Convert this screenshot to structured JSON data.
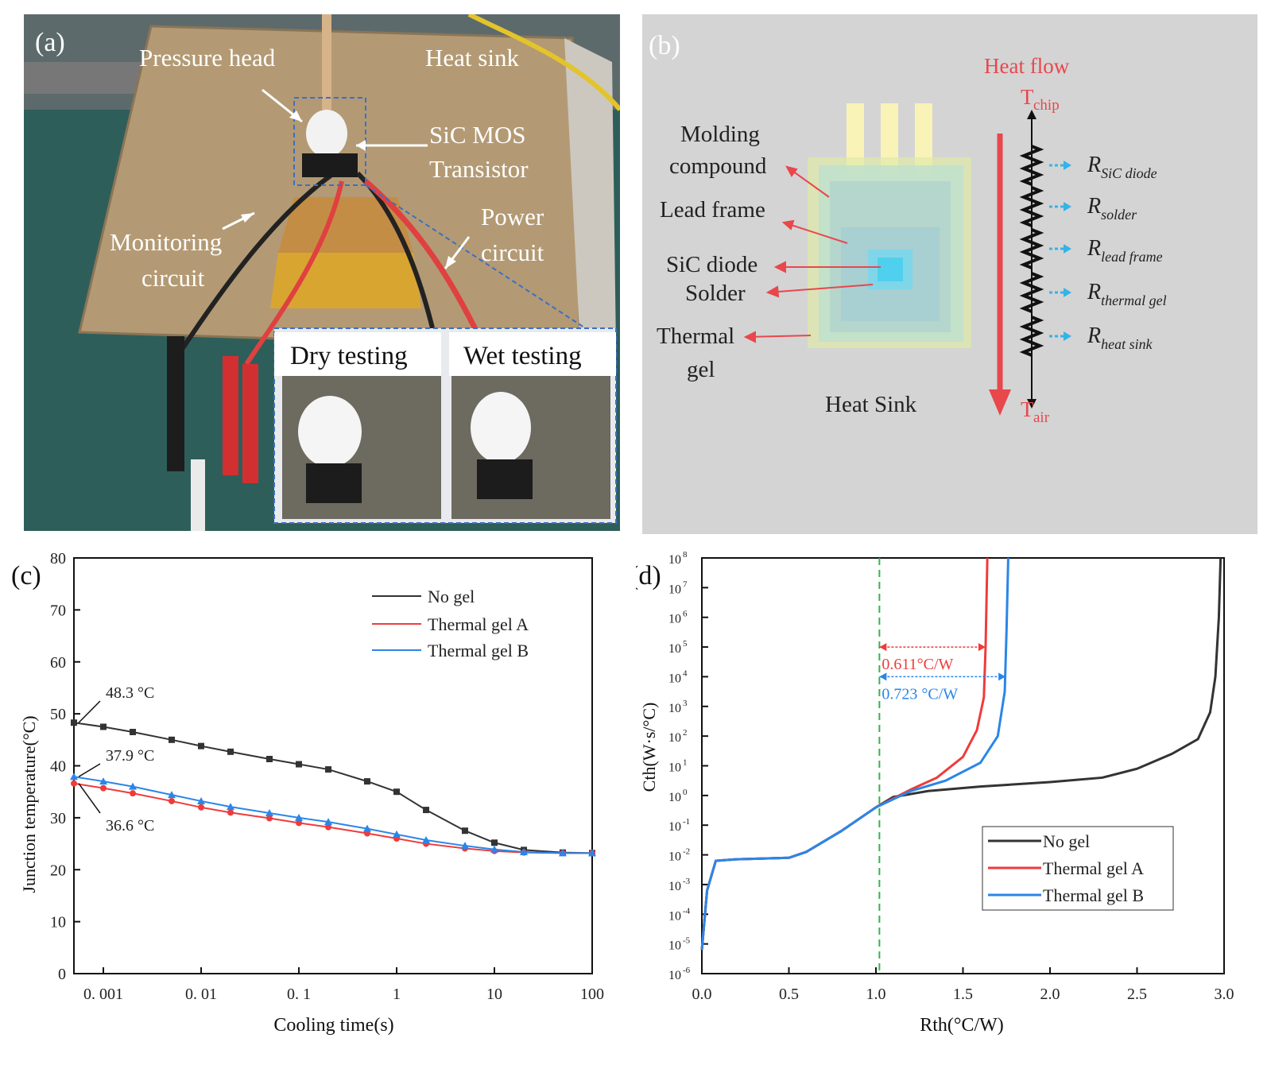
{
  "panel_a": {
    "label": "(a)",
    "annotations": {
      "pressure_head": "Pressure head",
      "heat_sink": "Heat sink",
      "sic_mos_line1": "SiC MOS",
      "sic_mos_line2": "Transistor",
      "monitoring_line1": "Monitoring",
      "monitoring_line2": "circuit",
      "power_line1": "Power",
      "power_line2": "circuit",
      "dry_testing": "Dry testing",
      "wet_testing": "Wet testing"
    },
    "colors": {
      "background": "#2e5e5a",
      "sink": "#b39a74",
      "gel": "#d9a531",
      "frame": "#e8eaee"
    }
  },
  "panel_b": {
    "label": "(b)",
    "heat_flow": "Heat flow",
    "t_chip_main": "T",
    "t_chip_sub": "chip",
    "t_air_main": "T",
    "t_air_sub": "air",
    "labels": {
      "molding_line1": "Molding",
      "molding_line2": "compound",
      "lead_frame": "Lead frame",
      "sic_diode": "SiC diode",
      "solder": "Solder",
      "thermal_line1": "Thermal",
      "thermal_line2": "gel",
      "heat_sink": "Heat Sink"
    },
    "resistors": [
      {
        "main": "R",
        "sub": "SiC diode"
      },
      {
        "main": "R",
        "sub": "solder"
      },
      {
        "main": "R",
        "sub": "lead frame"
      },
      {
        "main": "R",
        "sub": "thermal gel"
      },
      {
        "main": "R",
        "sub": "heat sink"
      }
    ],
    "colors": {
      "background": "#d4d4d4",
      "accent": "#e8474c",
      "arrow_blue": "#33b4e8"
    }
  },
  "chart_data": [
    {
      "panel": "(c)",
      "type": "line",
      "xlabel": "Cooling time(s)",
      "ylabel": "Junction temperature(°C)",
      "x_scale": "log",
      "xlim": [
        0.0005,
        100
      ],
      "ylim": [
        0,
        80
      ],
      "x_ticks": [
        0.001,
        0.01,
        0.1,
        1,
        10,
        100
      ],
      "x_tick_labels": [
        "0. 001",
        "0. 01",
        "0. 1",
        "1",
        "10",
        "100"
      ],
      "y_ticks": [
        0,
        10,
        20,
        30,
        40,
        50,
        60,
        70,
        80
      ],
      "legend_position": "top-right",
      "series": [
        {
          "name": "No gel",
          "color": "#333333",
          "marker": "square",
          "x": [
            0.0005,
            0.001,
            0.002,
            0.005,
            0.01,
            0.02,
            0.05,
            0.1,
            0.2,
            0.5,
            1,
            2,
            5,
            10,
            20,
            50,
            100
          ],
          "y": [
            48.3,
            47.5,
            46.5,
            45.0,
            43.8,
            42.7,
            41.3,
            40.3,
            39.3,
            37.0,
            35.0,
            31.5,
            27.5,
            25.2,
            23.8,
            23.3,
            23.2
          ]
        },
        {
          "name": "Thermal gel A",
          "color": "#ef3b3b",
          "marker": "circle",
          "x": [
            0.0005,
            0.001,
            0.002,
            0.005,
            0.01,
            0.02,
            0.05,
            0.1,
            0.2,
            0.5,
            1,
            2,
            5,
            10,
            20,
            50,
            100
          ],
          "y": [
            36.6,
            35.7,
            34.7,
            33.2,
            32.0,
            31.0,
            29.9,
            29.0,
            28.2,
            27.0,
            26.0,
            25.0,
            24.1,
            23.6,
            23.3,
            23.2,
            23.2
          ]
        },
        {
          "name": "Thermal gel B",
          "color": "#2a86e8",
          "marker": "triangle",
          "x": [
            0.0005,
            0.001,
            0.002,
            0.005,
            0.01,
            0.02,
            0.05,
            0.1,
            0.2,
            0.5,
            1,
            2,
            5,
            10,
            20,
            50,
            100
          ],
          "y": [
            37.9,
            37.0,
            36.0,
            34.4,
            33.2,
            32.1,
            30.9,
            30.0,
            29.2,
            27.9,
            26.8,
            25.7,
            24.6,
            23.9,
            23.4,
            23.2,
            23.2
          ]
        }
      ],
      "annotations": [
        {
          "text": "48.3 °C",
          "x": 0.0005,
          "y": 48.3
        },
        {
          "text": "37.9 °C",
          "x": 0.0005,
          "y": 37.9
        },
        {
          "text": "36.6 °C",
          "x": 0.0005,
          "y": 36.6
        }
      ]
    },
    {
      "panel": "(d)",
      "type": "line",
      "xlabel": "Rth(°C/W)",
      "ylabel": "Cth(W·s/°C)",
      "y_scale": "log",
      "xlim": [
        0,
        3.0
      ],
      "ylim_exp": [
        -6,
        8
      ],
      "x_ticks": [
        0,
        0.5,
        1.0,
        1.5,
        2.0,
        2.5,
        3.0
      ],
      "x_tick_labels": [
        "0.0",
        "0.5",
        "1.0",
        "1.5",
        "2.0",
        "2.5",
        "3.0"
      ],
      "y_tick_exponents": [
        -6,
        -5,
        -4,
        -3,
        -2,
        -1,
        0,
        1,
        2,
        3,
        4,
        5,
        6
      ],
      "y_top_exponent": 8,
      "y_7_exponent": 7,
      "legend_position": "bottom-right",
      "reference_x": 1.02,
      "series": [
        {
          "name": "No gel",
          "color": "#333333",
          "x": [
            0,
            0.03,
            0.08,
            0.2,
            0.5,
            0.6,
            0.8,
            1.0,
            1.1,
            1.3,
            1.6,
            2.0,
            2.3,
            2.5,
            2.7,
            2.85,
            2.92,
            2.95,
            2.97,
            2.98
          ],
          "y_log10": [
            -5.2,
            -3.2,
            -2.2,
            -2.15,
            -2.1,
            -1.9,
            -1.2,
            -0.4,
            -0.05,
            0.15,
            0.3,
            0.45,
            0.6,
            0.9,
            1.4,
            1.9,
            2.8,
            4.0,
            6.0,
            8.0
          ]
        },
        {
          "name": "Thermal gel A",
          "color": "#ef3b3b",
          "x": [
            0,
            0.03,
            0.08,
            0.2,
            0.5,
            0.6,
            0.8,
            1.0,
            1.2,
            1.35,
            1.5,
            1.58,
            1.62,
            1.63,
            1.64
          ],
          "y_log10": [
            -5.2,
            -3.2,
            -2.2,
            -2.15,
            -2.1,
            -1.9,
            -1.2,
            -0.4,
            0.2,
            0.6,
            1.3,
            2.2,
            3.3,
            5.0,
            8.0
          ]
        },
        {
          "name": "Thermal gel B",
          "color": "#2a86e8",
          "x": [
            0,
            0.03,
            0.08,
            0.2,
            0.5,
            0.6,
            0.8,
            1.0,
            1.2,
            1.4,
            1.6,
            1.7,
            1.74,
            1.75,
            1.76
          ],
          "y_log10": [
            -5.2,
            -3.2,
            -2.2,
            -2.15,
            -2.1,
            -1.9,
            -1.2,
            -0.4,
            0.15,
            0.5,
            1.1,
            2.0,
            3.5,
            5.5,
            8.0
          ]
        }
      ],
      "annotations": [
        {
          "text": "0.611°C/W",
          "color": "#ef3b3b",
          "x_from": 1.02,
          "x_to": 1.63,
          "y_log10": 5
        },
        {
          "text": "0.723 °C/W",
          "color": "#2a86e8",
          "x_from": 1.02,
          "x_to": 1.745,
          "y_log10": 4
        }
      ]
    }
  ]
}
